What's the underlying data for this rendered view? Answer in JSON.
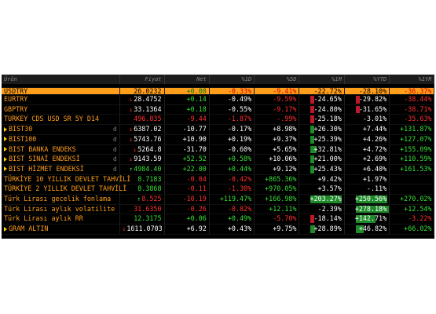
{
  "headers": {
    "name": "Ürün",
    "price": "Fiyat",
    "net": "Net",
    "d1": "%1D",
    "sd": "%5D",
    "m1": "%1M",
    "ytd": "%YTD",
    "y1": "%1YR"
  },
  "colors": {
    "up": "#38e038",
    "down": "#ff3030",
    "accent": "#ff9e1b",
    "price": "#ffd000"
  },
  "rows": [
    {
      "name": "USDTRY",
      "price": "26.0232",
      "net": "+0.08",
      "d1": "-0.33%",
      "sd": "-9.41%",
      "m1": "-22.72%",
      "ytd": "-28.10%",
      "y1": "-36.37%",
      "tri": false,
      "flag": "",
      "arrow": "",
      "price_dir": "up",
      "net_dir": "up",
      "d1_dir": "down",
      "sd_dir": "down",
      "m1_dir": "neutral",
      "ytd_dir": "neutral",
      "y1_dir": "down",
      "m1_bar": -0.1,
      "ytd_bar": -0.1
    },
    {
      "name": "EURTRY",
      "price": "28.4752",
      "net": "+0.14",
      "d1": "-0.49%",
      "sd": "-9.59%",
      "m1": "-24.65%",
      "ytd": "-29.82%",
      "y1": "-38.44%",
      "tri": false,
      "flag": "",
      "arrow": "down",
      "price_dir": "neutral",
      "net_dir": "up",
      "d1_dir": "neutral",
      "sd_dir": "down",
      "m1_dir": "neutral",
      "ytd_dir": "neutral",
      "y1_dir": "down",
      "m1_bar": -0.1,
      "ytd_bar": -0.1
    },
    {
      "name": "GBPTRY",
      "price": "33.1364",
      "net": "+0.18",
      "d1": "-0.55%",
      "sd": "-9.17%",
      "m1": "-24.80%",
      "ytd": "-31.65%",
      "y1": "-38.71%",
      "tri": false,
      "flag": "",
      "arrow": "down",
      "price_dir": "neutral",
      "net_dir": "up",
      "d1_dir": "neutral",
      "sd_dir": "down",
      "m1_dir": "neutral",
      "ytd_dir": "neutral",
      "y1_dir": "down",
      "m1_bar": -0.1,
      "ytd_bar": -0.1
    },
    {
      "name": "TURKEY CDS USD SR 5Y D14",
      "price": "496.835",
      "net": "-9.44",
      "d1": "-1.87%",
      "sd": "-.99%",
      "m1": "-25.18%",
      "ytd": "-3.01%",
      "y1": "-35.63%",
      "tri": false,
      "flag": "",
      "arrow": "",
      "price_dir": "down",
      "net_dir": "down",
      "d1_dir": "down",
      "sd_dir": "down",
      "m1_dir": "neutral",
      "ytd_dir": "neutral",
      "y1_dir": "down",
      "m1_bar": -0.1,
      "ytd_bar": 0
    },
    {
      "name": "BIST30",
      "price": "6387.02",
      "net": "-10.77",
      "d1": "-0.17%",
      "sd": "+8.98%",
      "m1": "+26.30%",
      "ytd": "+7.44%",
      "y1": "+131.87%",
      "tri": true,
      "flag": "d",
      "arrow": "down",
      "price_dir": "neutral",
      "net_dir": "neutral",
      "d1_dir": "neutral",
      "sd_dir": "neutral",
      "m1_dir": "neutral",
      "ytd_dir": "neutral",
      "y1_dir": "up",
      "m1_bar": 0.1,
      "ytd_bar": 0
    },
    {
      "name": "BIST100",
      "price": "5743.76",
      "net": "+10.90",
      "d1": "+0.19%",
      "sd": "+9.37%",
      "m1": "+25.39%",
      "ytd": "+4.26%",
      "y1": "+127.07%",
      "tri": true,
      "flag": "d",
      "arrow": "down",
      "price_dir": "neutral",
      "net_dir": "neutral",
      "d1_dir": "neutral",
      "sd_dir": "neutral",
      "m1_dir": "neutral",
      "ytd_dir": "neutral",
      "y1_dir": "up",
      "m1_bar": 0.1,
      "ytd_bar": 0
    },
    {
      "name": "BIST BANKA ENDEKS",
      "price": "5264.8",
      "net": "-31.70",
      "d1": "-0.60%",
      "sd": "+5.65%",
      "m1": "+32.81%",
      "ytd": "+4.72%",
      "y1": "+155.09%",
      "tri": true,
      "flag": "d",
      "arrow": "down",
      "price_dir": "neutral",
      "net_dir": "neutral",
      "d1_dir": "neutral",
      "sd_dir": "neutral",
      "m1_dir": "neutral",
      "ytd_dir": "neutral",
      "y1_dir": "up",
      "m1_bar": 0.15,
      "ytd_bar": 0
    },
    {
      "name": "BIST SINAİ ENDEKSİ",
      "price": "9143.59",
      "net": "+52.52",
      "d1": "+0.58%",
      "sd": "+10.06%",
      "m1": "+21.00%",
      "ytd": "+2.69%",
      "y1": "+110.59%",
      "tri": true,
      "flag": "d",
      "arrow": "down",
      "price_dir": "neutral",
      "net_dir": "up",
      "d1_dir": "up",
      "sd_dir": "neutral",
      "m1_dir": "neutral",
      "ytd_dir": "neutral",
      "y1_dir": "up",
      "m1_bar": 0.1,
      "ytd_bar": 0
    },
    {
      "name": "BIST HİZMET ENDEKSİ",
      "price": "4984.40",
      "net": "+22.00",
      "d1": "+0.44%",
      "sd": "+9.12%",
      "m1": "+25.43%",
      "ytd": "+6.40%",
      "y1": "+161.53%",
      "tri": true,
      "flag": "d",
      "arrow": "up",
      "price_dir": "up",
      "net_dir": "up",
      "d1_dir": "up",
      "sd_dir": "neutral",
      "m1_dir": "neutral",
      "ytd_dir": "neutral",
      "y1_dir": "up",
      "m1_bar": 0.1,
      "ytd_bar": 0
    },
    {
      "name": "TÜRKİYE 10 YILLIK DEVLET TAHVİLİ",
      "price": "8.7183",
      "net": "-0.04",
      "d1": "-0.42%",
      "sd": "+865.36%",
      "m1": "+9.42%",
      "ytd": "+1.97%",
      "y1": "",
      "tri": false,
      "flag": "",
      "arrow": "",
      "price_dir": "up",
      "net_dir": "down",
      "d1_dir": "down",
      "sd_dir": "up",
      "m1_dir": "neutral",
      "ytd_dir": "neutral",
      "y1_dir": "neutral",
      "m1_bar": 0,
      "ytd_bar": 0
    },
    {
      "name": "TÜRKİYE 2 YILLIK DEVLET TAHVİLİ",
      "price": "8.3868",
      "net": "-0.11",
      "d1": "-1.30%",
      "sd": "+970.05%",
      "m1": "+3.57%",
      "ytd": "-.11%",
      "y1": "",
      "tri": false,
      "flag": "",
      "arrow": "",
      "price_dir": "up",
      "net_dir": "down",
      "d1_dir": "down",
      "sd_dir": "up",
      "m1_dir": "neutral",
      "ytd_dir": "neutral",
      "y1_dir": "neutral",
      "m1_bar": 0,
      "ytd_bar": 0
    },
    {
      "name": "Türk Lirası gecelik fonlama",
      "price": "8.525",
      "net": "-10.19",
      "d1": "+119.47%",
      "sd": "+166.98%",
      "m1": "+203.27%",
      "ytd": "+250.56%",
      "y1": "+270.02%",
      "tri": false,
      "flag": "",
      "arrow": "up",
      "price_dir": "down",
      "net_dir": "down",
      "d1_dir": "up",
      "sd_dir": "up",
      "m1_dir": "neutral",
      "ytd_dir": "neutral",
      "y1_dir": "up",
      "m1_bar": 0.8,
      "ytd_bar": 0.8
    },
    {
      "name": "Türk Lirası aylık volatilite",
      "price": "31.6350",
      "net": "-0.26",
      "d1": "-0.82%",
      "sd": "+12.11%",
      "m1": "-2.39%",
      "ytd": "+278.18%",
      "y1": "+12.54%",
      "tri": false,
      "flag": "",
      "arrow": "",
      "price_dir": "down",
      "net_dir": "down",
      "d1_dir": "down",
      "sd_dir": "up",
      "m1_dir": "neutral",
      "ytd_dir": "neutral",
      "y1_dir": "up",
      "m1_bar": 0,
      "ytd_bar": 0.85
    },
    {
      "name": "Türk Lirası aylık RR",
      "price": "12.3175",
      "net": "+0.06",
      "d1": "+0.49%",
      "sd": "-5.70%",
      "m1": "-18.14%",
      "ytd": "+142.71%",
      "y1": "-3.22%",
      "tri": false,
      "flag": "",
      "arrow": "",
      "price_dir": "up",
      "net_dir": "up",
      "d1_dir": "up",
      "sd_dir": "down",
      "m1_dir": "neutral",
      "ytd_dir": "neutral",
      "y1_dir": "down",
      "m1_bar": -0.1,
      "ytd_bar": 0.5
    },
    {
      "name": "GRAM ALTIN",
      "price": "1611.0703",
      "net": "+6.92",
      "d1": "+0.43%",
      "sd": "+9.75%",
      "m1": "+28.89%",
      "ytd": "+46.82%",
      "y1": "+66.02%",
      "tri": true,
      "flag": "",
      "arrow": "down",
      "price_dir": "neutral",
      "net_dir": "neutral",
      "d1_dir": "neutral",
      "sd_dir": "neutral",
      "m1_dir": "neutral",
      "ytd_dir": "neutral",
      "y1_dir": "up",
      "m1_bar": 0.12,
      "ytd_bar": 0.2
    }
  ]
}
